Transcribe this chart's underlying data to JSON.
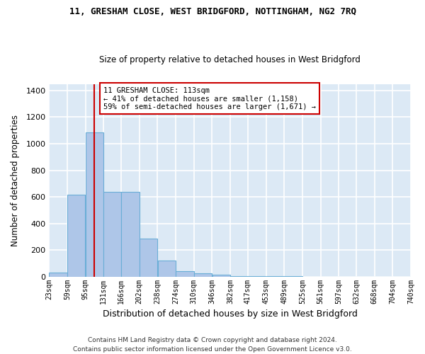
{
  "title": "11, GRESHAM CLOSE, WEST BRIDGFORD, NOTTINGHAM, NG2 7RQ",
  "subtitle": "Size of property relative to detached houses in West Bridgford",
  "xlabel": "Distribution of detached houses by size in West Bridgford",
  "ylabel": "Number of detached properties",
  "bar_color": "#aec6e8",
  "bar_edge_color": "#6aaed6",
  "bg_color": "#dce9f5",
  "grid_color": "#ffffff",
  "annotation_text": "11 GRESHAM CLOSE: 113sqm\n← 41% of detached houses are smaller (1,158)\n59% of semi-detached houses are larger (1,671) →",
  "annotation_box_color": "#cc0000",
  "vline_x": 113,
  "vline_color": "#cc0000",
  "bin_edges": [
    23,
    59,
    95,
    131,
    166,
    202,
    238,
    274,
    310,
    346,
    382,
    417,
    453,
    489,
    525,
    561,
    597,
    632,
    668,
    704,
    740
  ],
  "bar_heights": [
    30,
    615,
    1085,
    635,
    635,
    285,
    120,
    40,
    25,
    15,
    5,
    2,
    1,
    1,
    0,
    0,
    0,
    0,
    0,
    0
  ],
  "ylim": [
    0,
    1450
  ],
  "yticks": [
    0,
    200,
    400,
    600,
    800,
    1000,
    1200,
    1400
  ],
  "footer": "Contains HM Land Registry data © Crown copyright and database right 2024.\nContains public sector information licensed under the Open Government Licence v3.0."
}
